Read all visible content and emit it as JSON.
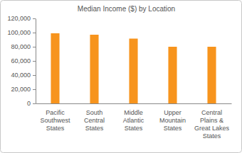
{
  "chart_data": {
    "type": "bar",
    "title": "Median Income ($) by Location",
    "categories": [
      "Pacific\nSouthwest\nStates",
      "South\nCentral\nStates",
      "Middle\nAtlantic\nStates",
      "Upper\nMountain\nStates",
      "Central\nPlains &\nGreat Lakes\nStates"
    ],
    "values": [
      99000,
      97000,
      91500,
      80000,
      80000
    ],
    "color": "#f7941d",
    "ylim": [
      0,
      120000
    ],
    "yticks": [
      0,
      {
        "value": 20000,
        "label": "20,000"
      },
      {
        "value": 40000,
        "label": "40,000"
      },
      {
        "value": 60000,
        "label": "60,000"
      },
      {
        "value": 80000,
        "label": "80,000"
      },
      {
        "value": 100000,
        "label": "100,000"
      },
      {
        "value": 120000,
        "label": "120,000"
      }
    ],
    "grid": false
  }
}
